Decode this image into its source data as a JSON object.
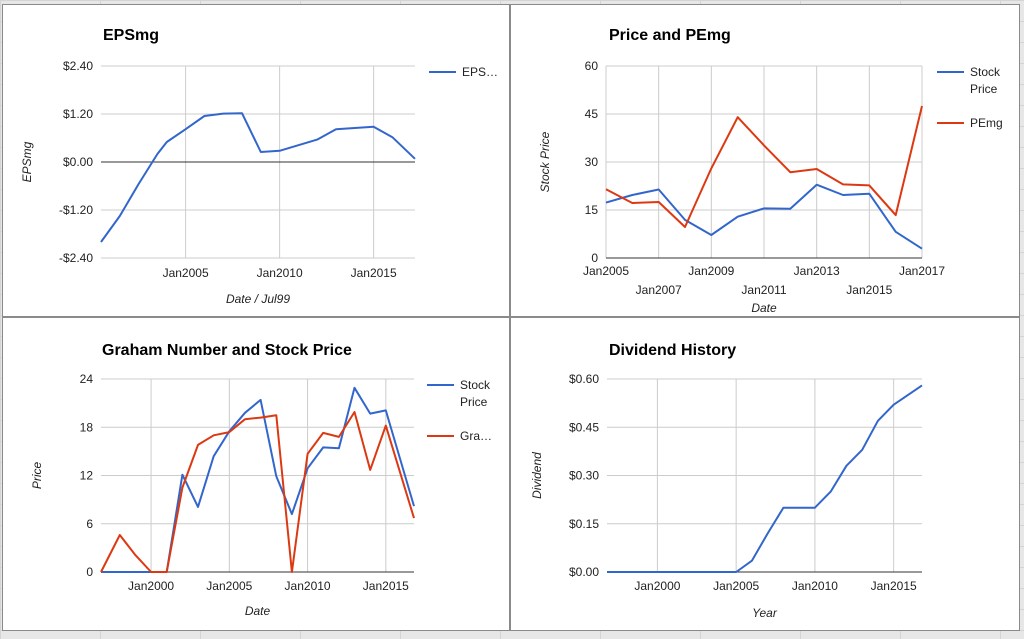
{
  "charts": [
    {
      "id": "eps",
      "title": "EPSmg",
      "xlabel": "Date / Jul99",
      "ylabel": "EPSmg",
      "legend": [
        "EPS…"
      ],
      "chart_data": {
        "type": "line",
        "title": "EPSmg",
        "xlabel": "Date / Jul99",
        "ylabel": "EPSmg",
        "xlim": [
          2000.5,
          2017.2
        ],
        "ylim": [
          -2.4,
          2.4
        ],
        "ytick_values": [
          -2.4,
          -1.2,
          0,
          1.2,
          2.4
        ],
        "ytick_labels": [
          "-$2.40",
          "-$1.20",
          "$0.00",
          "$1.20",
          "$2.40"
        ],
        "xtick_values": [
          2005,
          2010,
          2015
        ],
        "xtick_labels": [
          "Jan2005",
          "Jan2010",
          "Jan2015"
        ],
        "zero_line": true,
        "legend_position": "right",
        "series": [
          {
            "name": "EPS…",
            "color": "#3366cc",
            "x": [
              2000.5,
              2001.5,
              2002.5,
              2003.5,
              2004,
              2005,
              2006,
              2007,
              2008,
              2009,
              2010,
              2011,
              2012,
              2013,
              2014,
              2015,
              2016,
              2017.2
            ],
            "y": [
              -2.0,
              -1.35,
              -0.55,
              0.2,
              0.5,
              0.82,
              1.15,
              1.21,
              1.22,
              0.25,
              0.28,
              0.42,
              0.56,
              0.82,
              0.85,
              0.88,
              0.62,
              0.08
            ]
          }
        ]
      }
    },
    {
      "id": "pe",
      "title": "Price and PEmg",
      "xlabel": "Date",
      "ylabel": "Stock Price",
      "legend": [
        "Stock Price",
        "PEmg"
      ],
      "chart_data": {
        "type": "line",
        "title": "Price and PEmg",
        "xlabel": "Date",
        "ylabel": "Stock Price",
        "xlim": [
          2005,
          2017
        ],
        "ylim": [
          0,
          60
        ],
        "ytick_values": [
          0,
          15,
          30,
          45,
          60
        ],
        "ytick_labels": [
          "0",
          "15",
          "30",
          "45",
          "60"
        ],
        "xtick_values": [
          2005,
          2007,
          2009,
          2011,
          2013,
          2015,
          2017
        ],
        "xtick_labels": [
          "Jan2005",
          "Jan2007",
          "Jan2009",
          "Jan2011",
          "Jan2013",
          "Jan2015",
          "Jan2017"
        ],
        "legend_position": "right",
        "series": [
          {
            "name": "Stock Price",
            "color": "#3366cc",
            "x": [
              2005,
              2006,
              2007,
              2008,
              2009,
              2010,
              2011,
              2012,
              2013,
              2014,
              2015,
              2016,
              2017
            ],
            "y": [
              17.3,
              19.7,
              21.4,
              11.9,
              7.2,
              12.9,
              15.5,
              15.4,
              22.9,
              19.7,
              20.1,
              8.2,
              2.9
            ]
          },
          {
            "name": "PEmg",
            "color": "#dc3912",
            "x": [
              2005,
              2006,
              2007,
              2008,
              2009,
              2010,
              2011,
              2012,
              2013,
              2014,
              2015,
              2016,
              2017
            ],
            "y": [
              21.5,
              17.2,
              17.5,
              9.7,
              28.0,
              44.0,
              35.2,
              26.8,
              27.8,
              23.0,
              22.7,
              13.4,
              47.5
            ]
          }
        ]
      }
    },
    {
      "id": "graham",
      "title": "Graham Number and Stock Price",
      "xlabel": "Date",
      "ylabel": "Price",
      "legend": [
        "Stock Price",
        "Gra…"
      ],
      "chart_data": {
        "type": "line",
        "title": "Graham Number and Stock Price",
        "xlabel": "Date",
        "ylabel": "Price",
        "xlim": [
          1996.8,
          2016.8
        ],
        "ylim": [
          0,
          24
        ],
        "ytick_values": [
          0,
          6,
          12,
          18,
          24
        ],
        "ytick_labels": [
          "0",
          "6",
          "12",
          "18",
          "24"
        ],
        "xtick_values": [
          2000,
          2005,
          2010,
          2015
        ],
        "xtick_labels": [
          "Jan2000",
          "Jan2005",
          "Jan2010",
          "Jan2015"
        ],
        "legend_position": "right",
        "series": [
          {
            "name": "Stock Price",
            "color": "#3366cc",
            "x": [
              1996.8,
              1998,
              1999,
              2000,
              2001,
              2002,
              2003,
              2004,
              2005,
              2006,
              2007,
              2008,
              2009,
              2010,
              2011,
              2012,
              2013,
              2014,
              2015,
              2016.8
            ],
            "y": [
              0,
              0,
              0,
              0,
              0,
              12.1,
              8.1,
              14.4,
              17.5,
              19.8,
              21.4,
              11.9,
              7.2,
              12.9,
              15.5,
              15.4,
              22.9,
              19.7,
              20.1,
              8.2
            ]
          },
          {
            "name": "Gra…",
            "color": "#dc3912",
            "x": [
              1996.8,
              1998,
              1999,
              2000,
              2001,
              2002,
              2003,
              2004,
              2005,
              2006,
              2007,
              2008,
              2009,
              2010,
              2011,
              2012,
              2013,
              2014,
              2015,
              2016.8
            ],
            "y": [
              0,
              4.6,
              2.1,
              0,
              0,
              10.5,
              15.8,
              17.0,
              17.4,
              19.0,
              19.2,
              19.5,
              0,
              14.7,
              17.3,
              16.8,
              19.9,
              12.7,
              18.2,
              6.7
            ]
          }
        ]
      }
    },
    {
      "id": "dividend",
      "title": "Dividend History",
      "xlabel": "Year",
      "ylabel": "Dividend",
      "legend": [],
      "chart_data": {
        "type": "line",
        "title": "Dividend History",
        "xlabel": "Year",
        "ylabel": "Dividend",
        "xlim": [
          1996.8,
          2016.8
        ],
        "ylim": [
          0,
          0.6
        ],
        "ytick_values": [
          0,
          0.15,
          0.3,
          0.45,
          0.6
        ],
        "ytick_labels": [
          "$0.00",
          "$0.15",
          "$0.30",
          "$0.45",
          "$0.60"
        ],
        "xtick_values": [
          2000,
          2005,
          2010,
          2015
        ],
        "xtick_labels": [
          "Jan2000",
          "Jan2005",
          "Jan2010",
          "Jan2015"
        ],
        "legend_position": "none",
        "series": [
          {
            "name": "",
            "color": "#3366cc",
            "x": [
              1996.8,
              2005,
              2006,
              2007,
              2008,
              2009,
              2010,
              2011,
              2012,
              2013,
              2014,
              2015,
              2016.8
            ],
            "y": [
              0,
              0,
              0.035,
              0.12,
              0.2,
              0.2,
              0.2,
              0.25,
              0.33,
              0.38,
              0.47,
              0.52,
              0.58
            ]
          }
        ]
      }
    }
  ]
}
